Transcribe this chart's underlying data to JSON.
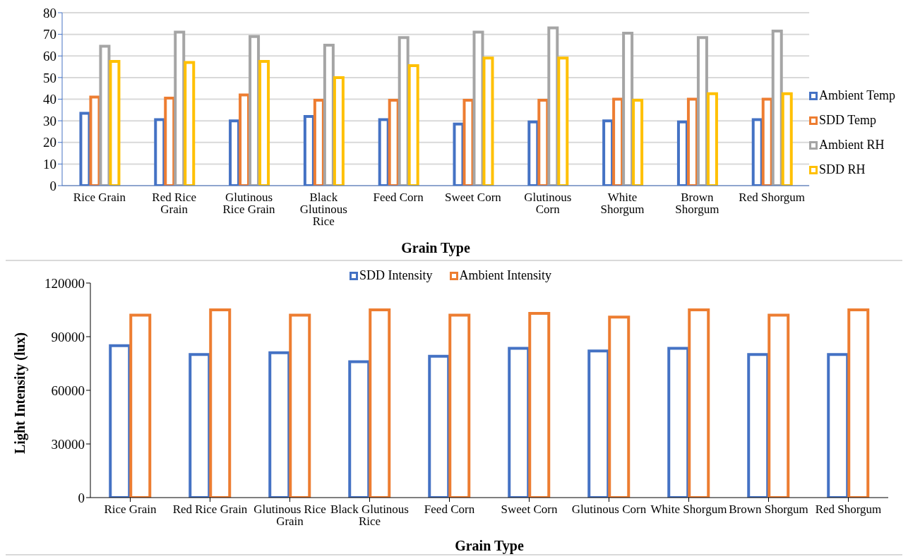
{
  "chart_data": [
    {
      "type": "bar",
      "xlabel": "Grain Type",
      "categories": [
        "Rice Grain",
        "Red Rice Grain",
        "Glutinous Rice Grain",
        "Black Glutinous Rice",
        "Feed Corn",
        "Sweet Corn",
        "Glutinous Corn",
        "White Shorgum",
        "Brown Shorgum",
        "Red Shorgum"
      ],
      "series": [
        {
          "name": "Ambient Temp",
          "color": "#4472c4",
          "values": [
            33.5,
            30.5,
            30,
            32,
            30.5,
            28.5,
            29.5,
            30,
            29.5,
            30.5
          ]
        },
        {
          "name": "SDD Temp",
          "color": "#ed7d31",
          "values": [
            41,
            40.5,
            42,
            39.5,
            39.5,
            39.5,
            39.5,
            40,
            40,
            40
          ]
        },
        {
          "name": "Ambient RH",
          "color": "#a5a5a5",
          "values": [
            64.5,
            71,
            69,
            65,
            68.5,
            71,
            73,
            70.5,
            68.5,
            71.5
          ]
        },
        {
          "name": "SDD RH",
          "color": "#ffc000",
          "values": [
            57.5,
            57,
            57.5,
            50,
            55.5,
            59,
            59,
            39.5,
            42.5,
            42.5
          ]
        }
      ],
      "ylim": [
        0,
        80
      ],
      "yticks": [
        0,
        10,
        20,
        30,
        40,
        50,
        60,
        70,
        80
      ],
      "grid": "y",
      "legend": "right"
    },
    {
      "type": "bar",
      "xlabel": "Grain Type",
      "ylabel": "Light Intensity (lux)",
      "categories": [
        "Rice Grain",
        "Red Rice Grain",
        "Glutinous Rice Grain",
        "Black Glutinous Rice",
        "Feed Corn",
        "Sweet Corn",
        "Glutinous Corn",
        "White Shorgum",
        "Brown Shorgum",
        "Red Shorgum"
      ],
      "series": [
        {
          "name": "SDD Intensity",
          "color": "#4472c4",
          "values": [
            85000,
            80000,
            81000,
            76000,
            79000,
            83500,
            82000,
            83500,
            80000,
            80000
          ]
        },
        {
          "name": "Ambient Intensity",
          "color": "#ed7d31",
          "values": [
            102000,
            105000,
            102000,
            105000,
            102000,
            103000,
            101000,
            105000,
            102000,
            105000
          ]
        }
      ],
      "ylim": [
        0,
        120000
      ],
      "yticks": [
        0,
        30000,
        60000,
        90000,
        120000
      ],
      "legend": "top"
    }
  ]
}
